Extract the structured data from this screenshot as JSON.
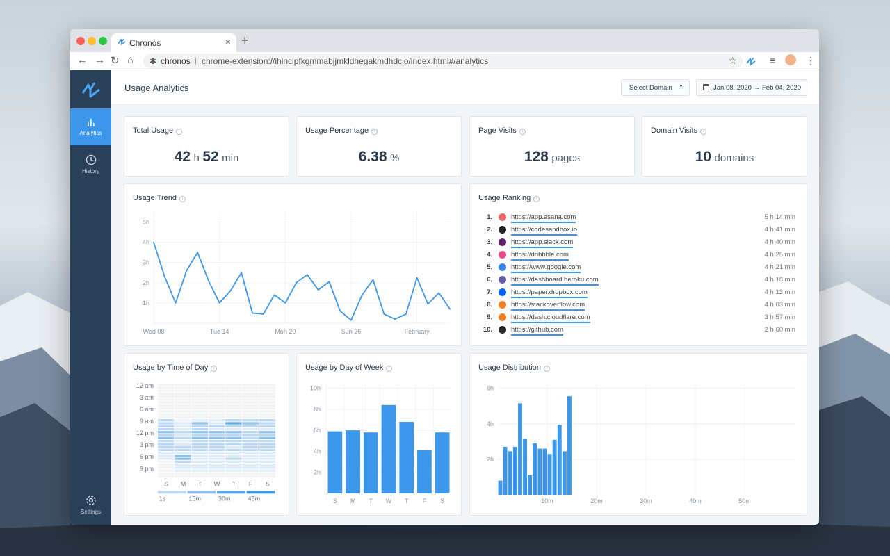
{
  "browser": {
    "tab_title": "Chronos",
    "new_tab": "+",
    "close": "×",
    "address_host": "chronos",
    "address_url": "chrome-extension://ihinclpfkgmmabjjmkldhegakmdhdcio/index.html#/analytics"
  },
  "sidebar": {
    "analytics": "Analytics",
    "history": "History",
    "settings": "Settings"
  },
  "header": {
    "title": "Usage Analytics",
    "select_domain": "Select Domain",
    "date_start": "Jan 08, 2020",
    "date_end": "Feb 04, 2020"
  },
  "stats": {
    "total_usage": {
      "title": "Total Usage",
      "hours": "42",
      "h_unit": "h",
      "minutes": "52",
      "m_unit": "min"
    },
    "usage_percentage": {
      "title": "Usage Percentage",
      "value": "6.38",
      "unit": "%"
    },
    "page_visits": {
      "title": "Page Visits",
      "value": "128",
      "unit": "pages"
    },
    "domain_visits": {
      "title": "Domain Visits",
      "value": "10",
      "unit": "domains"
    }
  },
  "ranking": {
    "title": "Usage Ranking",
    "items": [
      {
        "rank": "1.",
        "url": "https://app.asana.com",
        "time": "5 h 14 min",
        "color": "#f06a6a"
      },
      {
        "rank": "2.",
        "url": "https://codesandbox.io",
        "time": "4 h 41 min",
        "color": "#222222"
      },
      {
        "rank": "3.",
        "url": "https://app.slack.com",
        "time": "4 h 40 min",
        "color": "#611f69"
      },
      {
        "rank": "4.",
        "url": "https://dribbble.com",
        "time": "4 h 25 min",
        "color": "#ea4c89"
      },
      {
        "rank": "5.",
        "url": "https://www.google.com",
        "time": "4 h 21 min",
        "color": "#4285f4"
      },
      {
        "rank": "6.",
        "url": "https://dashboard.heroku.com",
        "time": "4 h 18 min",
        "color": "#6762a6"
      },
      {
        "rank": "7.",
        "url": "https://paper.dropbox.com",
        "time": "4 h 13 min",
        "color": "#0061ff"
      },
      {
        "rank": "8.",
        "url": "https://stackoverflow.com",
        "time": "4 h 03 min",
        "color": "#f48024"
      },
      {
        "rank": "9.",
        "url": "https://dash.cloudflare.com",
        "time": "3 h 57 min",
        "color": "#f38020"
      },
      {
        "rank": "10.",
        "url": "https://github.com",
        "time": "2 h 60 min",
        "color": "#24292e"
      }
    ]
  },
  "chart_data": [
    {
      "type": "line",
      "title": "Usage Trend",
      "y_unit": "h",
      "yticks": [
        "1h",
        "2h",
        "3h",
        "4h",
        "5h"
      ],
      "ylim": [
        0,
        5.5
      ],
      "xticks": [
        "Wed 08",
        "Tue 14",
        "Mon 20",
        "Sun 26",
        "February"
      ],
      "xtick_dates": [
        "2020-01-08",
        "2020-01-14",
        "2020-01-20",
        "2020-01-26",
        "2020-02-01"
      ],
      "x": [
        "2020-01-08",
        "2020-01-09",
        "2020-01-10",
        "2020-01-11",
        "2020-01-12",
        "2020-01-13",
        "2020-01-14",
        "2020-01-15",
        "2020-01-16",
        "2020-01-17",
        "2020-01-18",
        "2020-01-19",
        "2020-01-20",
        "2020-01-21",
        "2020-01-22",
        "2020-01-23",
        "2020-01-24",
        "2020-01-25",
        "2020-01-26",
        "2020-01-27",
        "2020-01-28",
        "2020-01-29",
        "2020-01-30",
        "2020-01-31",
        "2020-02-01",
        "2020-02-02",
        "2020-02-03",
        "2020-02-04"
      ],
      "values": [
        4.0,
        2.3,
        1.0,
        2.6,
        3.5,
        2.1,
        1.0,
        1.6,
        2.5,
        0.5,
        0.45,
        1.4,
        1.0,
        2.0,
        2.4,
        1.65,
        2.05,
        0.6,
        0.15,
        1.4,
        2.15,
        0.45,
        0.2,
        0.45,
        2.25,
        0.95,
        1.5,
        0.7
      ]
    },
    {
      "type": "heatmap",
      "title": "Usage by Time of Day",
      "rows": [
        "12 am",
        "3 am",
        "6 am",
        "9 am",
        "12 pm",
        "3 pm",
        "6 pm",
        "9 pm"
      ],
      "columns": [
        "S",
        "M",
        "T",
        "W",
        "T",
        "F",
        "S"
      ],
      "legend": [
        "1s",
        "15m",
        "30m",
        "45m"
      ],
      "colors": [
        "#f1f3f5",
        "#deebf8",
        "#bcd8f2",
        "#8ec0ec",
        "#5aa7ea",
        "#3c96ea"
      ],
      "values": [
        [
          0,
          0,
          0,
          0,
          0,
          0,
          0
        ],
        [
          0,
          0,
          0,
          0,
          0,
          0,
          0
        ],
        [
          0,
          0,
          0,
          0,
          0,
          0,
          0
        ],
        [
          0,
          0,
          0,
          0,
          0,
          0,
          0
        ],
        [
          0,
          0,
          0,
          0,
          0,
          0,
          0
        ],
        [
          0,
          0,
          0,
          0,
          0,
          0,
          0
        ],
        [
          0,
          0,
          0,
          0,
          0,
          0,
          0
        ],
        [
          0,
          0,
          0,
          0,
          0,
          0,
          0
        ],
        [
          0,
          0,
          0,
          0,
          0,
          0,
          0
        ],
        [
          0,
          0,
          0,
          0,
          0,
          0,
          0
        ],
        [
          0,
          0,
          0,
          0,
          0,
          0,
          0
        ],
        [
          0,
          0,
          0,
          0,
          0,
          0,
          0
        ],
        [
          2,
          0,
          1,
          1,
          2,
          2,
          2
        ],
        [
          2,
          1,
          3,
          1,
          4,
          3,
          2
        ],
        [
          2,
          1,
          2,
          2,
          2,
          2,
          2
        ],
        [
          2,
          1,
          2,
          1,
          1,
          1,
          1
        ],
        [
          3,
          2,
          3,
          3,
          3,
          2,
          3
        ],
        [
          2,
          1,
          2,
          2,
          2,
          2,
          2
        ],
        [
          3,
          2,
          3,
          3,
          3,
          2,
          3
        ],
        [
          2,
          1,
          2,
          2,
          2,
          2,
          2
        ],
        [
          2,
          1,
          2,
          2,
          2,
          2,
          2
        ],
        [
          2,
          2,
          2,
          2,
          1,
          2,
          2
        ],
        [
          2,
          2,
          2,
          2,
          2,
          2,
          2
        ],
        [
          1,
          1,
          1,
          1,
          1,
          1,
          1
        ],
        [
          1,
          3,
          1,
          1,
          1,
          1,
          1
        ],
        [
          1,
          3,
          1,
          1,
          2,
          1,
          1
        ],
        [
          0,
          2,
          1,
          1,
          1,
          1,
          1
        ],
        [
          0,
          1,
          1,
          1,
          1,
          1,
          1
        ],
        [
          0,
          1,
          1,
          1,
          1,
          1,
          1
        ],
        [
          0,
          1,
          1,
          1,
          1,
          1,
          1
        ],
        [
          0,
          0,
          0,
          0,
          0,
          0,
          0
        ],
        [
          0,
          0,
          0,
          0,
          0,
          0,
          0
        ]
      ]
    },
    {
      "type": "bar",
      "title": "Usage by Day of Week",
      "categories": [
        "S",
        "M",
        "T",
        "W",
        "T",
        "F",
        "S"
      ],
      "values": [
        5.9,
        6.0,
        5.8,
        8.4,
        6.8,
        4.1,
        5.8
      ],
      "yticks": [
        "2h",
        "4h",
        "6h",
        "8h",
        "10h"
      ],
      "ylim": [
        0,
        10.5
      ]
    },
    {
      "type": "bar",
      "title": "Usage Distribution",
      "x_unit": "min",
      "xticks": [
        "10m",
        "20m",
        "30m",
        "40m",
        "50m"
      ],
      "yticks": [
        "2h",
        "4h",
        "6h"
      ],
      "ylim": [
        0,
        6.3
      ],
      "bins_start": 0,
      "bin_width": 1,
      "values": [
        0.8,
        2.7,
        2.45,
        2.7,
        5.15,
        3.15,
        1.1,
        2.9,
        2.6,
        2.6,
        2.3,
        3.1,
        3.95,
        2.45,
        5.55
      ]
    }
  ]
}
